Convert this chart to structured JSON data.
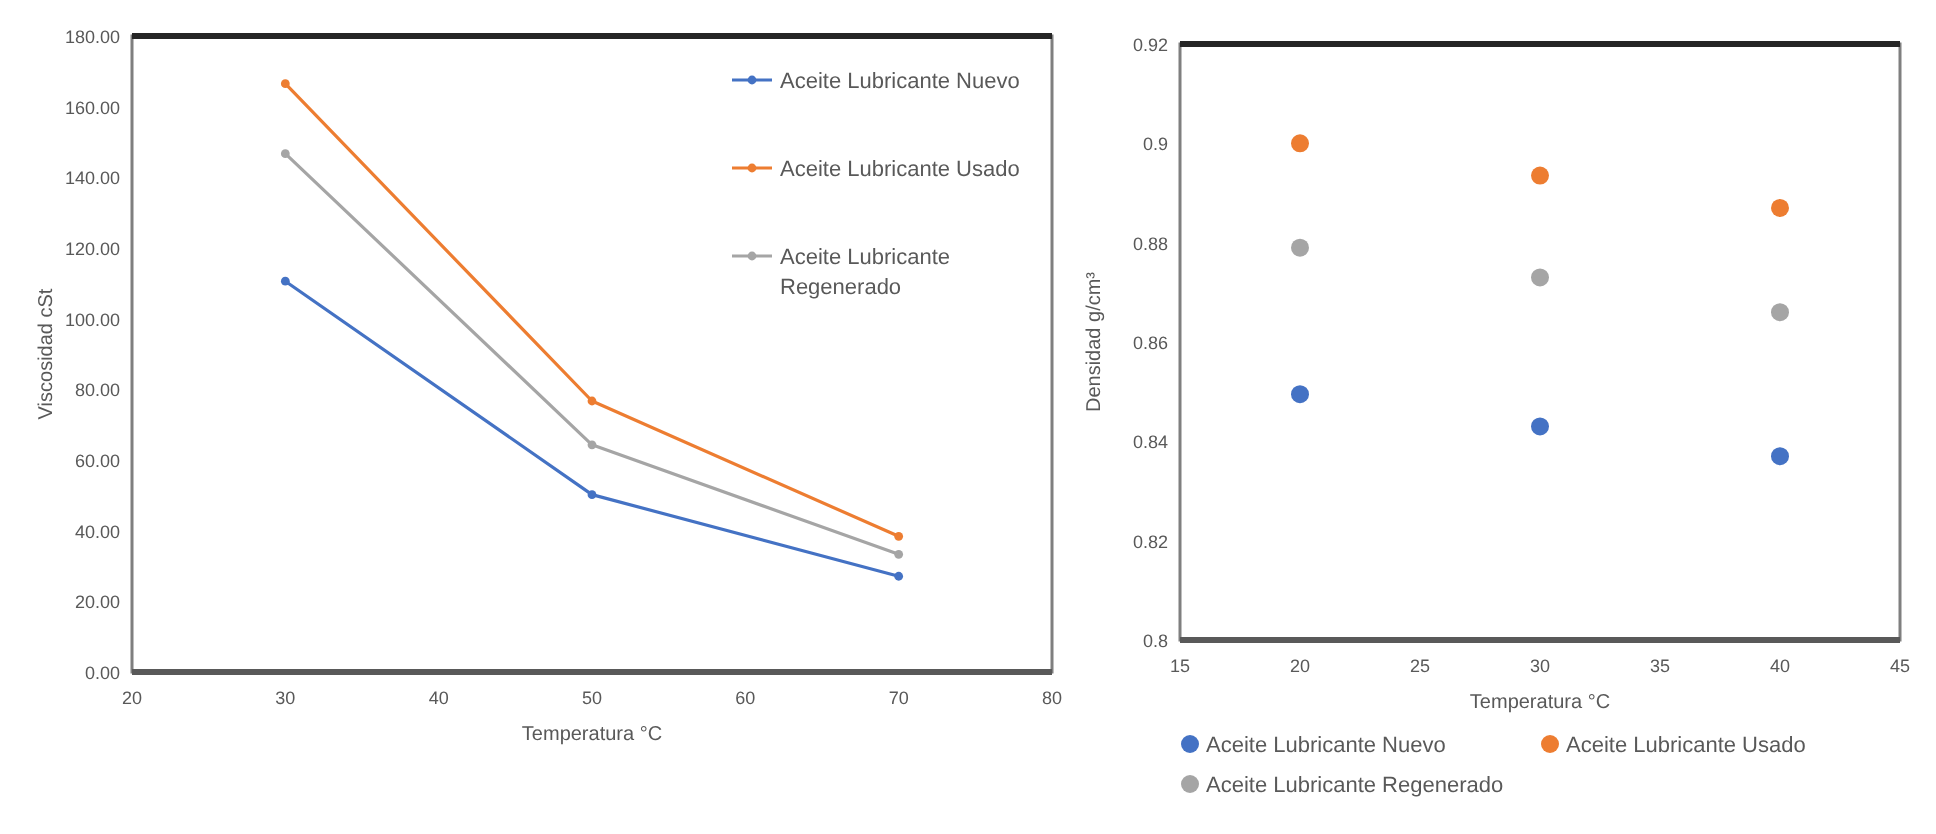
{
  "chart_data": [
    {
      "type": "line",
      "xlabel": "Temperatura °C",
      "ylabel": "Viscosidad cSt",
      "x": [
        30,
        50,
        70
      ],
      "xlim": [
        20,
        80
      ],
      "xticks": [
        20,
        30,
        40,
        50,
        60,
        70,
        80
      ],
      "ylim": [
        0,
        180
      ],
      "yticks": [
        {
          "value": 0,
          "label": "0.00"
        },
        {
          "value": 20,
          "label": "20.00"
        },
        {
          "value": 40,
          "label": "40.00"
        },
        {
          "value": 60,
          "label": "60.00"
        },
        {
          "value": 80,
          "label": "80.00"
        },
        {
          "value": 100,
          "label": "100.00"
        },
        {
          "value": 120,
          "label": "120.00"
        },
        {
          "value": 140,
          "label": "140.00"
        },
        {
          "value": 160,
          "label": "160.00"
        },
        {
          "value": 180,
          "label": "180.00"
        }
      ],
      "grid": false,
      "legend": "top right",
      "marker": "circle",
      "line_style": "solid",
      "series": [
        {
          "name": "Aceite Lubricante Nuevo",
          "color": "#4472c4",
          "values": [
            110.6,
            50.2,
            27.1
          ]
        },
        {
          "name": "Aceite Lubricante Usado",
          "color": "#ed7d31",
          "values": [
            166.5,
            76.7,
            38.4
          ]
        },
        {
          "name": "Aceite Lubricante Regenerado",
          "color": "#a5a5a5",
          "values": [
            146.7,
            64.3,
            33.3
          ]
        }
      ]
    },
    {
      "type": "scatter",
      "xlabel": "Temperatura °C",
      "ylabel": "Densidad g/cm³",
      "x": [
        20,
        30,
        40
      ],
      "xlim": [
        15,
        45
      ],
      "xticks": [
        15,
        20,
        25,
        30,
        35,
        40,
        45
      ],
      "ylim": [
        0.8,
        0.92
      ],
      "yticks": [
        0.8,
        0.82,
        0.84,
        0.86,
        0.88,
        0.9,
        0.92
      ],
      "grid": false,
      "legend": "bottom",
      "marker": "circle",
      "series": [
        {
          "name": "Aceite Lubricante Nuevo",
          "color": "#4472c4",
          "values": [
            0.8495,
            0.843,
            0.837
          ]
        },
        {
          "name": "Aceite Lubricante Usado",
          "color": "#ed7d31",
          "values": [
            0.9,
            0.8935,
            0.887
          ]
        },
        {
          "name": "Aceite Lubricante Regenerado",
          "color": "#a5a5a5",
          "values": [
            0.879,
            0.873,
            0.866
          ]
        }
      ]
    }
  ]
}
